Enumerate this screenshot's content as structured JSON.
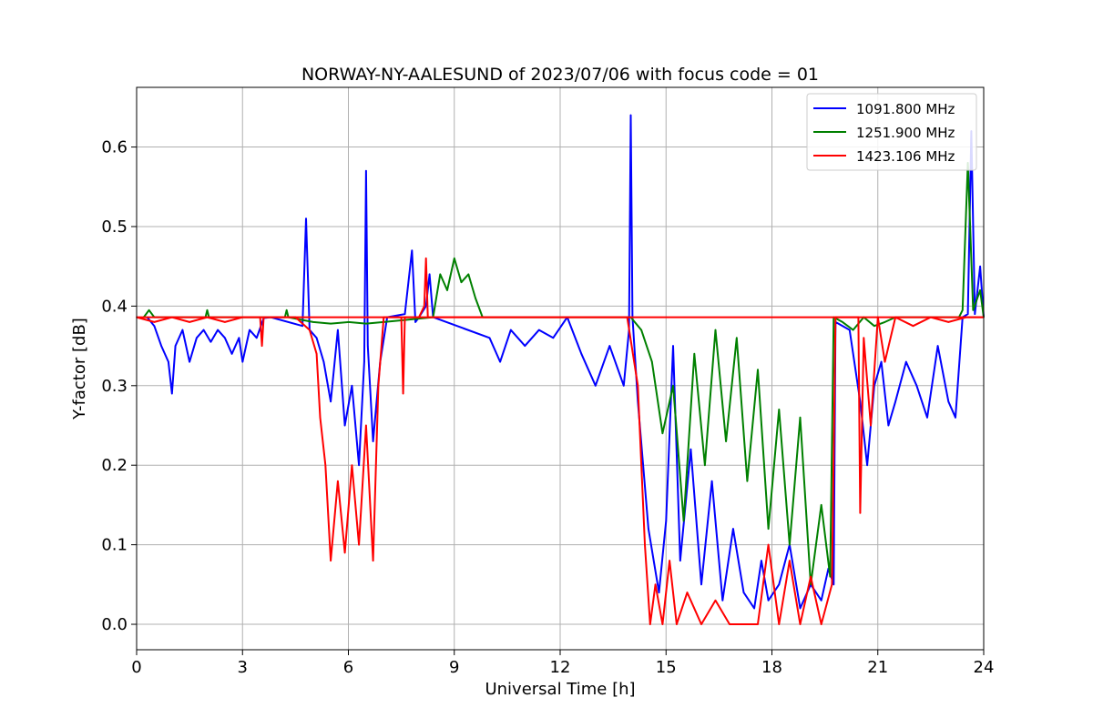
{
  "chart_data": {
    "type": "line",
    "title": "NORWAY-NY-AALESUND of 2023/07/06 with focus code = 01",
    "xlabel": "Universal Time [h]",
    "ylabel": "Y-factor [dB]",
    "xlim": [
      0,
      24
    ],
    "ylim": [
      -0.032,
      0.675
    ],
    "xticks": [
      0,
      3,
      6,
      9,
      12,
      15,
      18,
      21,
      24
    ],
    "xtick_labels": [
      "0",
      "3",
      "6",
      "9",
      "12",
      "15",
      "18",
      "21",
      "24"
    ],
    "yticks": [
      0.0,
      0.1,
      0.2,
      0.3,
      0.4,
      0.5,
      0.6
    ],
    "ytick_labels": [
      "0.0",
      "0.1",
      "0.2",
      "0.3",
      "0.4",
      "0.5",
      "0.6"
    ],
    "grid": true,
    "legend_position": "top-right",
    "baseline_value": 0.386,
    "series": [
      {
        "name": "1091.800 MHz",
        "color": "#0000ff",
        "x": [
          0.3,
          0.5,
          0.7,
          0.9,
          1.0,
          1.1,
          1.3,
          1.5,
          1.7,
          1.9,
          2.1,
          2.3,
          2.5,
          2.7,
          2.9,
          3.0,
          3.2,
          3.4,
          3.6,
          3.8,
          4.7,
          4.8,
          4.9,
          5.1,
          5.3,
          5.5,
          5.7,
          5.9,
          6.1,
          6.3,
          6.45,
          6.5,
          6.55,
          6.7,
          6.9,
          7.1,
          7.6,
          7.8,
          7.9,
          8.0,
          8.2,
          8.3,
          8.4,
          10.0,
          10.3,
          10.6,
          11.0,
          11.4,
          11.8,
          12.2,
          12.6,
          13.0,
          13.4,
          13.8,
          13.95,
          14.0,
          14.05,
          14.2,
          14.5,
          14.8,
          15.0,
          15.2,
          15.4,
          15.7,
          16.0,
          16.3,
          16.6,
          16.9,
          17.2,
          17.5,
          17.7,
          17.9,
          18.2,
          18.5,
          18.8,
          19.1,
          19.4,
          19.6,
          19.75,
          19.8,
          20.2,
          20.5,
          20.7,
          20.9,
          21.1,
          21.3,
          21.5,
          21.8,
          22.1,
          22.4,
          22.7,
          23.0,
          23.2,
          23.4,
          23.55,
          23.65,
          23.75,
          23.9,
          24.0
        ],
        "y": [
          0.386,
          0.375,
          0.35,
          0.33,
          0.29,
          0.35,
          0.37,
          0.33,
          0.36,
          0.37,
          0.355,
          0.37,
          0.36,
          0.34,
          0.36,
          0.33,
          0.37,
          0.36,
          0.385,
          0.386,
          0.375,
          0.51,
          0.37,
          0.36,
          0.33,
          0.28,
          0.37,
          0.25,
          0.3,
          0.2,
          0.33,
          0.57,
          0.35,
          0.23,
          0.33,
          0.386,
          0.39,
          0.47,
          0.38,
          0.386,
          0.4,
          0.44,
          0.386,
          0.36,
          0.33,
          0.37,
          0.35,
          0.37,
          0.36,
          0.386,
          0.34,
          0.3,
          0.35,
          0.3,
          0.37,
          0.64,
          0.386,
          0.28,
          0.12,
          0.04,
          0.13,
          0.35,
          0.08,
          0.22,
          0.05,
          0.18,
          0.03,
          0.12,
          0.04,
          0.02,
          0.08,
          0.03,
          0.05,
          0.1,
          0.02,
          0.05,
          0.03,
          0.07,
          0.05,
          0.38,
          0.37,
          0.28,
          0.2,
          0.3,
          0.33,
          0.25,
          0.28,
          0.33,
          0.3,
          0.26,
          0.35,
          0.28,
          0.26,
          0.386,
          0.39,
          0.62,
          0.39,
          0.45,
          0.386
        ]
      },
      {
        "name": "1251.900 MHz",
        "color": "#008000",
        "x": [
          0.2,
          0.35,
          0.5,
          1.95,
          2.0,
          2.05,
          4.2,
          4.25,
          4.3,
          5.0,
          5.5,
          6.0,
          6.5,
          7.0,
          8.4,
          8.6,
          8.8,
          9.0,
          9.2,
          9.4,
          9.6,
          9.8,
          14.0,
          14.3,
          14.6,
          14.9,
          15.2,
          15.5,
          15.8,
          16.1,
          16.4,
          16.7,
          17.0,
          17.3,
          17.6,
          17.9,
          18.2,
          18.5,
          18.8,
          19.1,
          19.4,
          19.65,
          19.75,
          20.0,
          20.3,
          20.6,
          20.9,
          21.2,
          21.5,
          23.3,
          23.4,
          23.55,
          23.7,
          23.9,
          24.0
        ],
        "y": [
          0.386,
          0.395,
          0.386,
          0.386,
          0.395,
          0.386,
          0.386,
          0.395,
          0.386,
          0.38,
          0.378,
          0.38,
          0.378,
          0.38,
          0.386,
          0.44,
          0.42,
          0.46,
          0.43,
          0.44,
          0.41,
          0.386,
          0.386,
          0.37,
          0.33,
          0.24,
          0.3,
          0.13,
          0.34,
          0.2,
          0.37,
          0.23,
          0.36,
          0.18,
          0.32,
          0.12,
          0.27,
          0.1,
          0.26,
          0.05,
          0.15,
          0.06,
          0.386,
          0.38,
          0.37,
          0.386,
          0.375,
          0.38,
          0.386,
          0.386,
          0.395,
          0.58,
          0.395,
          0.42,
          0.386
        ]
      },
      {
        "name": "1423.106 MHz",
        "color": "#ff0000",
        "x": [
          0.0,
          0.5,
          1.0,
          1.5,
          2.0,
          2.5,
          3.0,
          3.5,
          3.55,
          3.6,
          4.0,
          4.5,
          4.9,
          5.1,
          5.2,
          5.35,
          5.5,
          5.7,
          5.9,
          6.1,
          6.3,
          6.5,
          6.7,
          6.85,
          7.0,
          7.2,
          7.5,
          7.55,
          7.6,
          8.0,
          8.15,
          8.2,
          8.25,
          9.0,
          10.0,
          11.0,
          12.0,
          13.0,
          13.9,
          14.2,
          14.4,
          14.55,
          14.7,
          14.9,
          15.1,
          15.3,
          15.6,
          16.0,
          16.4,
          16.8,
          17.2,
          17.6,
          17.9,
          18.2,
          18.5,
          18.8,
          19.1,
          19.4,
          19.7,
          19.8,
          20.45,
          20.5,
          20.6,
          20.8,
          21.0,
          21.2,
          21.5,
          22.0,
          22.5,
          23.0,
          23.5,
          24.0
        ],
        "y": [
          0.386,
          0.38,
          0.386,
          0.38,
          0.386,
          0.38,
          0.386,
          0.386,
          0.35,
          0.386,
          0.386,
          0.386,
          0.37,
          0.34,
          0.26,
          0.2,
          0.08,
          0.18,
          0.09,
          0.2,
          0.1,
          0.25,
          0.08,
          0.3,
          0.386,
          0.386,
          0.386,
          0.29,
          0.386,
          0.386,
          0.4,
          0.46,
          0.386,
          0.386,
          0.386,
          0.386,
          0.386,
          0.386,
          0.386,
          0.3,
          0.1,
          0.0,
          0.05,
          0.0,
          0.08,
          0.0,
          0.04,
          0.0,
          0.03,
          0.0,
          0.0,
          0.0,
          0.1,
          0.0,
          0.08,
          0.0,
          0.06,
          0.0,
          0.05,
          0.386,
          0.386,
          0.14,
          0.36,
          0.25,
          0.386,
          0.33,
          0.386,
          0.375,
          0.386,
          0.38,
          0.386,
          0.386
        ]
      }
    ]
  }
}
